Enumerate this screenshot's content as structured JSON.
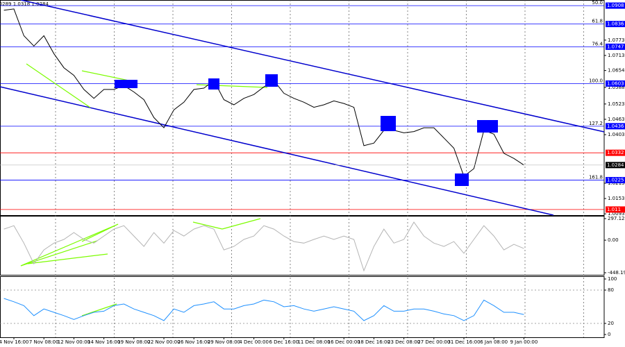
{
  "chart_data": [
    {
      "type": "line",
      "info": "1.0289 1.0318 1.0284",
      "categories": [
        null,
        "4 Nov 16:00",
        null,
        null,
        "7 Nov 08:00",
        null,
        null,
        "12 Nov 00:00",
        null,
        null,
        "14 Nov 16:00",
        null,
        null,
        "19 Nov 08:00",
        null,
        null,
        "22 Nov 00:00",
        null,
        null,
        "26 Nov 16:00",
        null,
        null,
        "29 Nov 08:00",
        null,
        null,
        "4 Dec 00:00",
        null,
        null,
        "6 Dec 16:00",
        null,
        null,
        "11 Dec 08:00",
        null,
        null,
        "16 Dec 00:00",
        null,
        null,
        "18 Dec 16:00",
        null,
        null,
        "23 Dec 08:00",
        null,
        null,
        "27 Dec 00:00",
        null,
        null,
        "31 Dec 16:00",
        null,
        null,
        "6 Jan 08:00",
        null,
        null,
        "9 Jan 00:00"
      ],
      "series": [
        {
          "color": "#000000",
          "values": [
            1.089,
            1.0895,
            1.079,
            1.075,
            1.079,
            1.072,
            1.0665,
            1.0635,
            1.058,
            1.0545,
            1.058,
            1.058,
            1.0595,
            1.057,
            1.054,
            1.047,
            1.043,
            1.05,
            1.053,
            1.058,
            1.0585,
            1.0615,
            1.054,
            1.052,
            1.0545,
            1.056,
            1.059,
            1.0615,
            1.0565,
            1.0545,
            1.053,
            1.051,
            1.052,
            1.0535,
            1.0525,
            1.051,
            1.036,
            1.037,
            1.042,
            1.042,
            1.041,
            1.0415,
            1.043,
            1.043,
            1.039,
            1.035,
            1.024,
            1.027,
            1.042,
            1.0405,
            1.033,
            1.031,
            1.0284
          ]
        }
      ],
      "ylim": [
        1.0088,
        1.093
      ],
      "yticks": [
        1.0773,
        1.0713,
        1.0654,
        1.0588,
        1.0523,
        1.0463,
        1.0403,
        1.0213,
        1.0153,
        1.0093
      ],
      "levels": [
        {
          "value": 1.0908,
          "fib": "50.0",
          "color": "#0000ff"
        },
        {
          "value": 1.0836,
          "fib": "61.8",
          "color": "#0000ff"
        },
        {
          "value": 1.0747,
          "fib": "76.4",
          "color": "#0000ff"
        },
        {
          "value": 1.0603,
          "fib": "100.0",
          "color": "#0000ff"
        },
        {
          "value": 1.0436,
          "fib": "127.2",
          "color": "#0000ff"
        },
        {
          "value": 1.0332,
          "color": "#ff0000"
        },
        {
          "value": 1.0225,
          "fib": "161.8",
          "color": "#0000ff"
        },
        {
          "value": 1.011,
          "color": "#ff0000"
        }
      ]
    },
    {
      "type": "line",
      "series": [
        {
          "color": "#b4b4b4",
          "values": [
            153,
            200,
            -40,
            -325,
            -134,
            -40,
            10,
            105,
            10,
            -40,
            57,
            153,
            200,
            57,
            -86,
            105,
            -40,
            134,
            57,
            153,
            200,
            153,
            -134,
            -86,
            10,
            57,
            200,
            153,
            57,
            -19,
            -40,
            10,
            57,
            10,
            57,
            10,
            -420,
            -86,
            153,
            -40,
            10,
            248,
            57,
            -40,
            -86,
            -19,
            -181,
            10,
            200,
            57,
            -134,
            -57,
            -115
          ]
        }
      ],
      "ylim": [
        -448.195,
        297.1261
      ],
      "yticks": [
        297.1261,
        {
          "value": 0,
          "label": "0.00"
        },
        -448.195
      ]
    },
    {
      "type": "line",
      "series": [
        {
          "color": "#1e90ff",
          "values": [
            65,
            59,
            52,
            34,
            46,
            40,
            34,
            27,
            34,
            40,
            42,
            52,
            55,
            46,
            40,
            34,
            25,
            46,
            40,
            52,
            55,
            59,
            46,
            46,
            52,
            55,
            62,
            59,
            50,
            52,
            46,
            42,
            46,
            50,
            46,
            42,
            25,
            34,
            52,
            42,
            42,
            46,
            46,
            42,
            37,
            34,
            25,
            34,
            62,
            52,
            40,
            40,
            36
          ]
        }
      ],
      "ylim": [
        0,
        100
      ],
      "yticks": [
        100,
        80,
        20,
        0
      ]
    }
  ]
}
